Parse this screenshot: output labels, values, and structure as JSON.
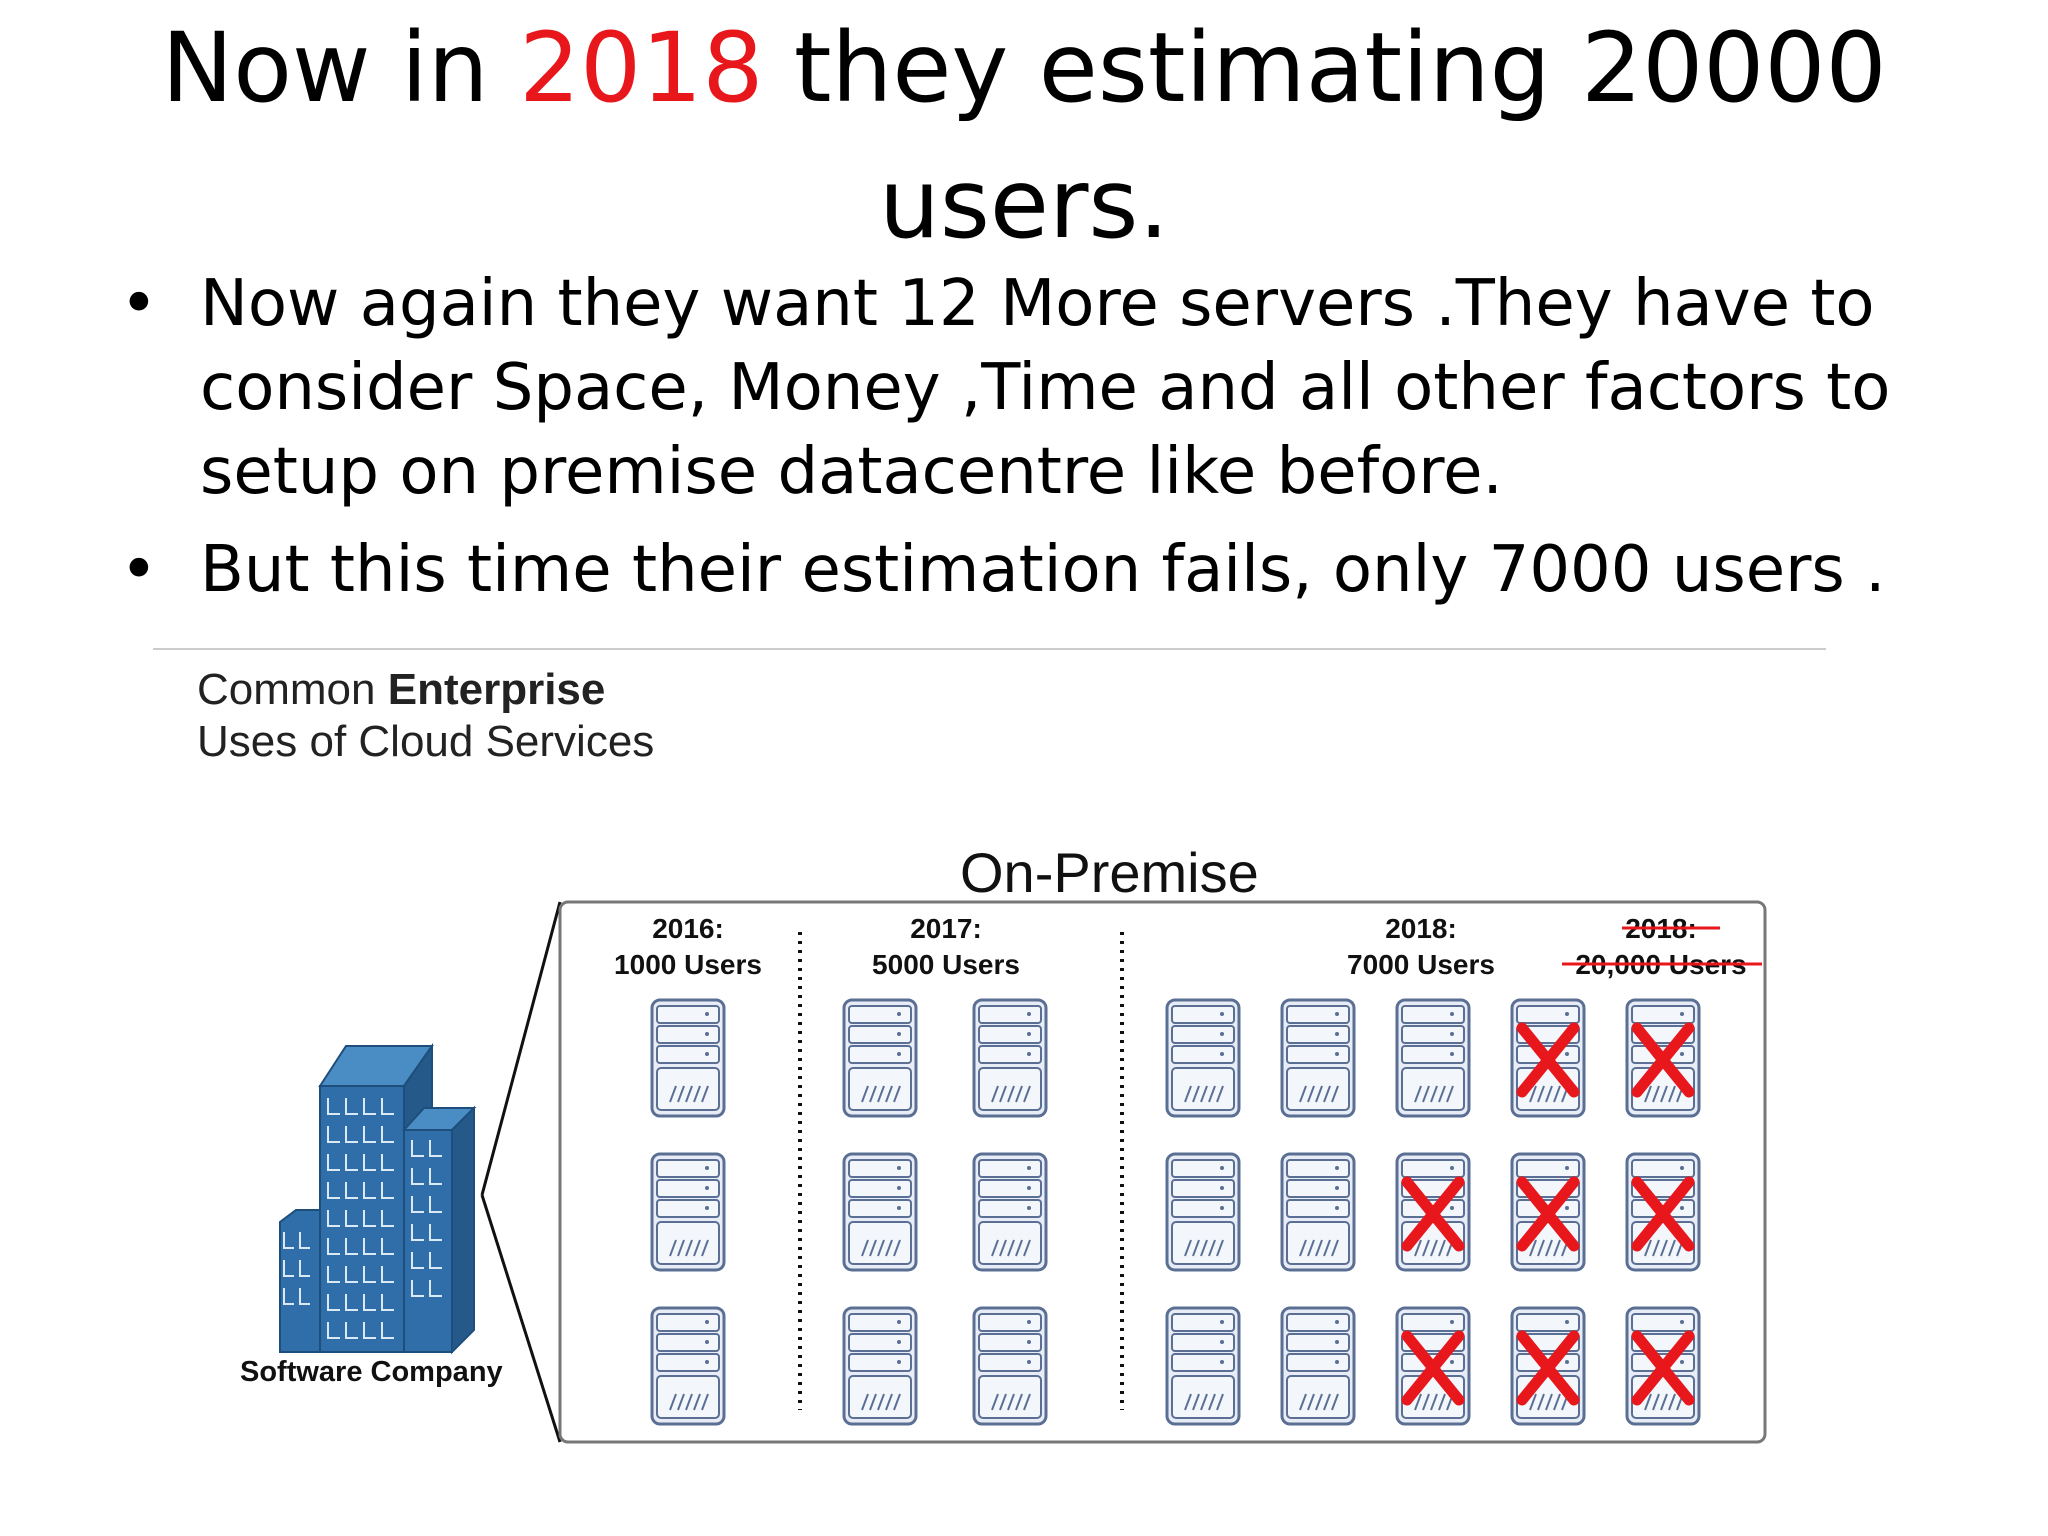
{
  "title": {
    "prefix": "Now in ",
    "year": "2018",
    "suffix": " they estimating 20000",
    "line2": "users.",
    "highlight_color": "#e8171b"
  },
  "bullets": [
    "Now again they want 12 More servers .They have to consider Space, Money ,Time and all other factors to setup on premise datacentre  like before.",
    "But this time their estimation fails, only 7000 users ."
  ],
  "figure": {
    "subtitle_normal": "Common ",
    "subtitle_bold": "Enterprise",
    "subtitle_line2": "Uses of Cloud Services",
    "section_title": "On-Premise",
    "company_label": "Software Company",
    "building_color": "#2f6ea8",
    "groups": [
      {
        "year_label": "2016:",
        "users_label": "1000 Users",
        "strikethrough": false
      },
      {
        "year_label": "2017:",
        "users_label": "5000 Users",
        "strikethrough": false
      },
      {
        "year_label": "2018:",
        "users_label": "7000 Users",
        "strikethrough": false
      },
      {
        "year_label": "2018:",
        "users_label": "20,000 Users",
        "strikethrough": true
      }
    ],
    "unused_mark_color": "#e8171b"
  }
}
